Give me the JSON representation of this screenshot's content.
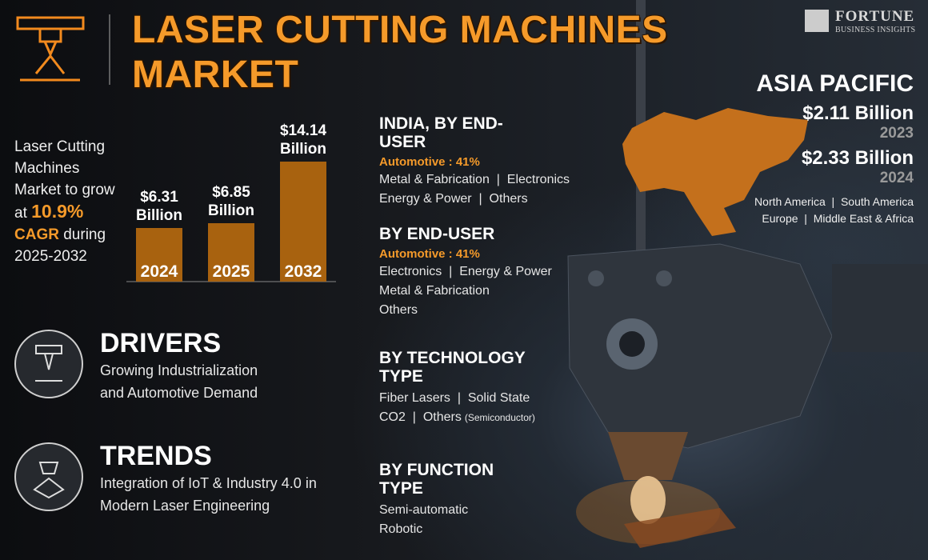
{
  "header": {
    "title": "LASER CUTTING MACHINES MARKET",
    "brand": "FORTUNE",
    "brand_tagline": "BUSINESS INSIGHTS"
  },
  "intro": {
    "text_before": "Laser Cutting Machines Market to grow at",
    "growth": "10.9%",
    "cagr": "CAGR",
    "text_after": "during 2025-2032"
  },
  "chart_data": {
    "type": "bar",
    "categories": [
      "2024",
      "2025",
      "2032"
    ],
    "values": [
      6.31,
      6.85,
      14.14
    ],
    "value_labels": [
      "$6.31 Billion",
      "$6.85 Billion",
      "$14.14 Billion"
    ],
    "color": "#a8620f"
  },
  "region": {
    "name": "ASIA PACIFIC",
    "amounts": [
      {
        "value": "$2.11 Billion",
        "year": "2023"
      },
      {
        "value": "$2.33 Billion",
        "year": "2024"
      }
    ],
    "others": [
      "North America  |  South America",
      "Europe  |  Middle East & Africa"
    ]
  },
  "segments": [
    {
      "title": "INDIA, BY END-USER",
      "highlight": "Automotive : 41%",
      "lines": [
        "Metal & Fabrication  |  Electronics",
        "Energy & Power  |  Others"
      ]
    },
    {
      "title": "BY END-USER",
      "highlight": "Automotive : 41%",
      "lines": [
        "Electronics  |  Energy & Power",
        "Metal & Fabrication",
        "Others"
      ]
    },
    {
      "title": "BY TECHNOLOGY TYPE",
      "lines": [
        "Fiber Lasers  |  Solid State",
        "CO2  |  Others"
      ],
      "note": "(Semiconductor)"
    },
    {
      "title": "BY FUNCTION TYPE",
      "lines": [
        "Semi-automatic",
        "Robotic"
      ]
    }
  ],
  "drivers": {
    "title": "DRIVERS",
    "text": "Growing Industrialization and Automotive Demand"
  },
  "trends": {
    "title": "TRENDS",
    "text": "Integration of IoT & Industry 4.0 in Modern Laser Engineering"
  }
}
